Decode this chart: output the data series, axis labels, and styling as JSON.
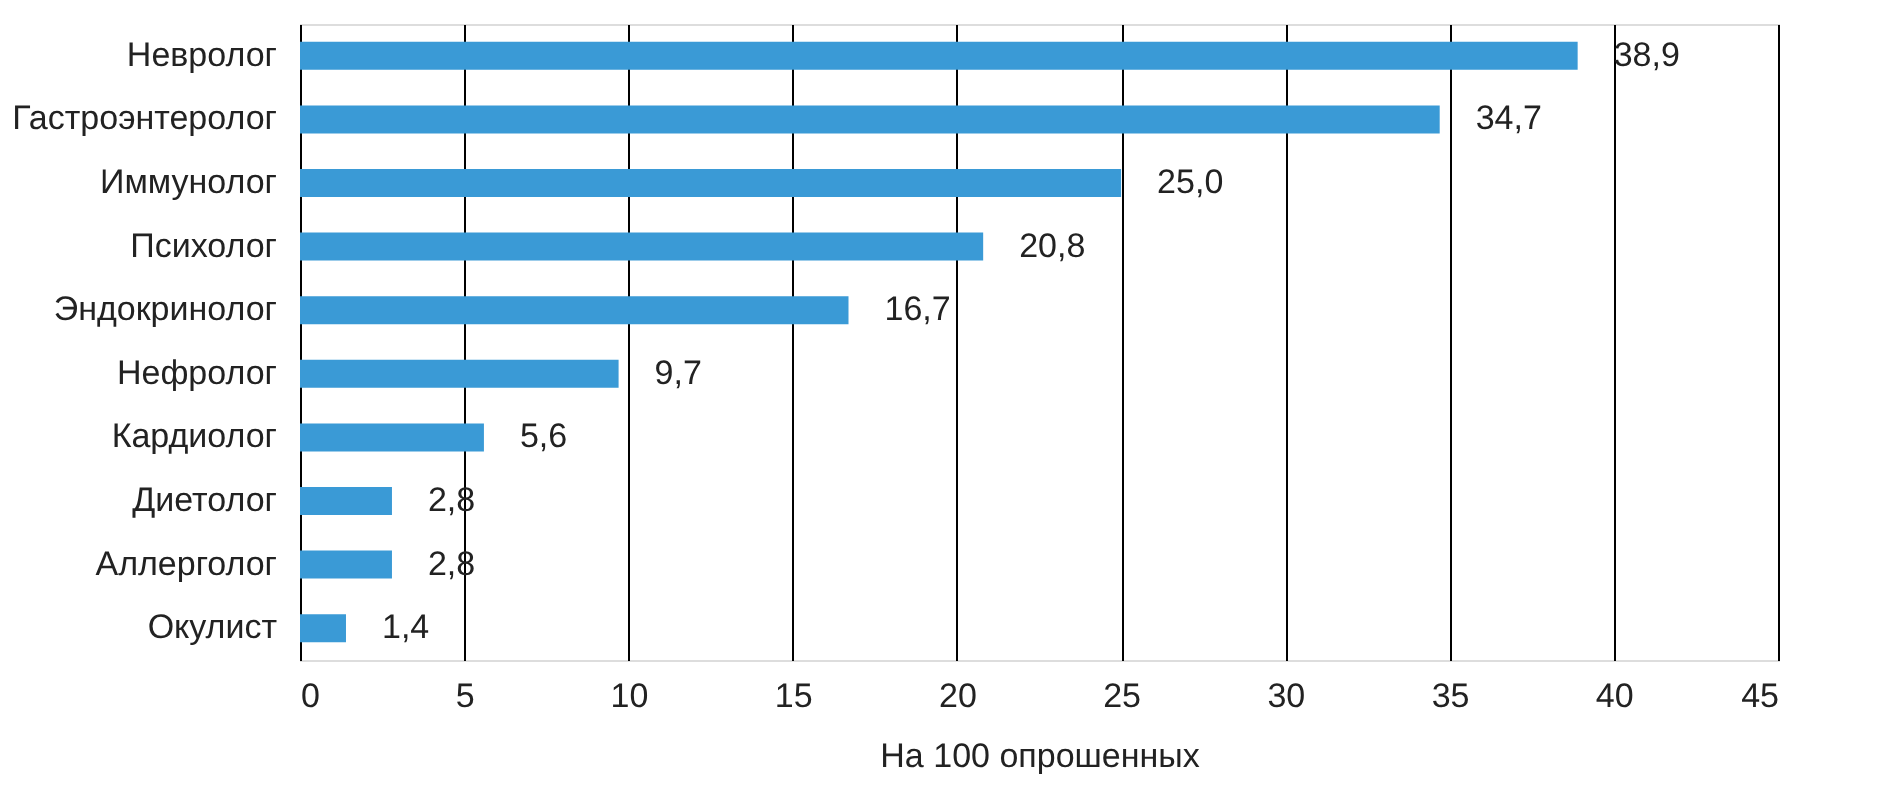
{
  "chart_data": {
    "type": "bar",
    "orientation": "horizontal",
    "xlabel": "На 100 опрошенных",
    "categories": [
      "Невролог",
      "Гастроэнтеролог",
      "Иммунолог",
      "Психолог",
      "Эндокринолог",
      "Нефролог",
      "Кардиолог",
      "Диетолог",
      "Аллерголог",
      "Окулист"
    ],
    "values": [
      38.9,
      34.7,
      25.0,
      20.8,
      16.7,
      9.7,
      5.6,
      2.8,
      2.8,
      1.4
    ],
    "value_labels": [
      "38,9",
      "34,7",
      "25,0",
      "20,8",
      "16,7",
      "9,7",
      "5,6",
      "2,8",
      "2,8",
      "1,4"
    ],
    "color": "#3a9ad6",
    "xlim": [
      0,
      45
    ],
    "xticks": [
      0,
      5,
      10,
      15,
      20,
      25,
      30,
      35,
      40,
      45
    ],
    "grid": "x"
  }
}
